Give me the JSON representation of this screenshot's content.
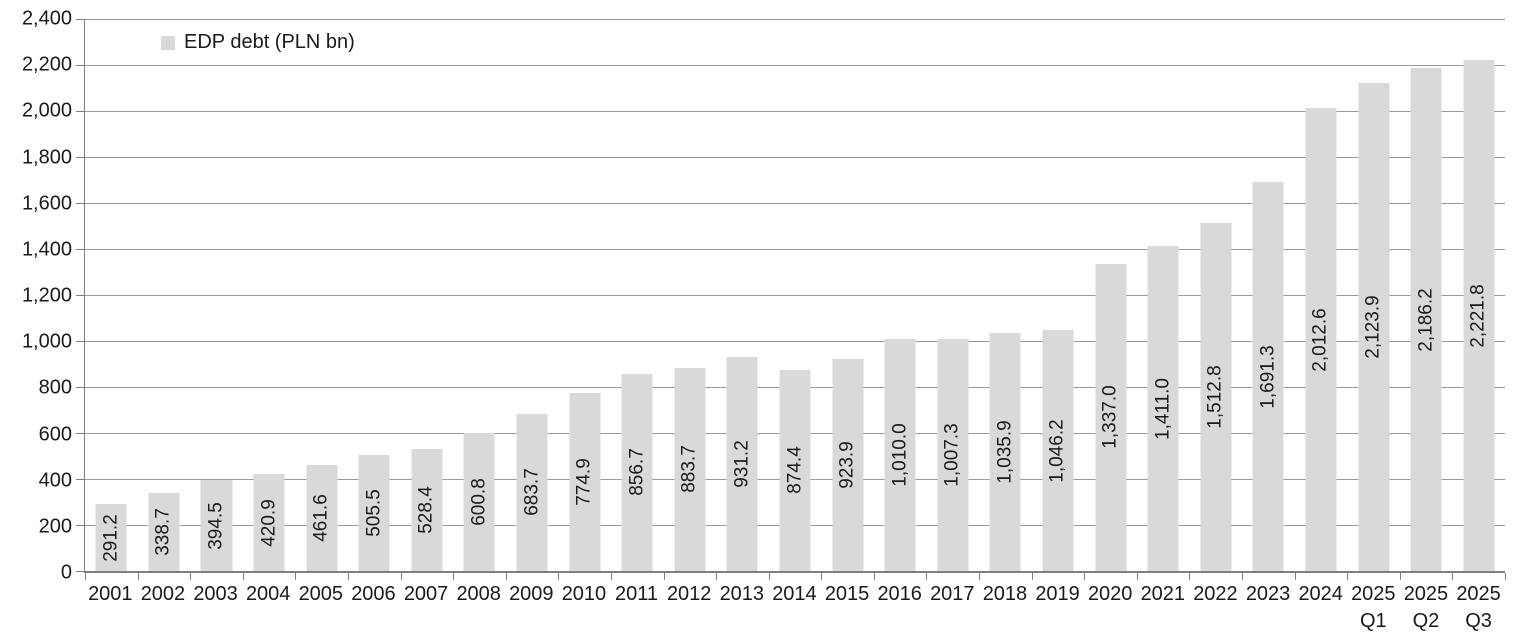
{
  "legend": {
    "label": "EDP debt (PLN bn)",
    "swatch_color": "#d9d9d9"
  },
  "chart_data": {
    "type": "bar",
    "title": "",
    "series_name": "EDP debt (PLN bn)",
    "categories": [
      "2001",
      "2002",
      "2003",
      "2004",
      "2005",
      "2006",
      "2007",
      "2008",
      "2009",
      "2010",
      "2011",
      "2012",
      "2013",
      "2014",
      "2015",
      "2016",
      "2017",
      "2018",
      "2019",
      "2020",
      "2021",
      "2022",
      "2023",
      "2024",
      "2025\nQ1",
      "2025\nQ2",
      "2025\nQ3"
    ],
    "values": [
      291.2,
      338.7,
      394.5,
      420.9,
      461.6,
      505.5,
      528.4,
      600.8,
      683.7,
      774.9,
      856.7,
      883.7,
      931.2,
      874.4,
      923.9,
      1010.0,
      1007.3,
      1035.9,
      1046.2,
      1337.0,
      1411.0,
      1512.8,
      1691.3,
      2012.6,
      2123.9,
      2186.2,
      2221.8
    ],
    "value_labels": [
      "291.2",
      "338.7",
      "394.5",
      "420.9",
      "461.6",
      "505.5",
      "528.4",
      "600.8",
      "683.7",
      "774.9",
      "856.7",
      "883.7",
      "931.2",
      "874.4",
      "923.9",
      "1,010.0",
      "1,007.3",
      "1,035.9",
      "1,046.2",
      "1,337.0",
      "1,411.0",
      "1,512.8",
      "1,691.3",
      "2,012.6",
      "2,123.9",
      "2,186.2",
      "2,221.8"
    ],
    "xlabel": "",
    "ylabel": "",
    "ylim": [
      0,
      2400
    ],
    "ytick_interval": 200,
    "ytick_labels_top_to_bottom": [
      "2,400",
      "2,200",
      "2,000",
      "1,800",
      "1,600",
      "1,400",
      "1,200",
      "1,000",
      "800",
      "600",
      "400",
      "200",
      "0"
    ],
    "grid": true,
    "legend_position": "top-left-inside",
    "bar_color": "#d9d9d9",
    "gridline_color": "#999999",
    "axis_color": "#808080",
    "text_color": "#1a1a1a",
    "value_label_rotation_deg": -90
  }
}
